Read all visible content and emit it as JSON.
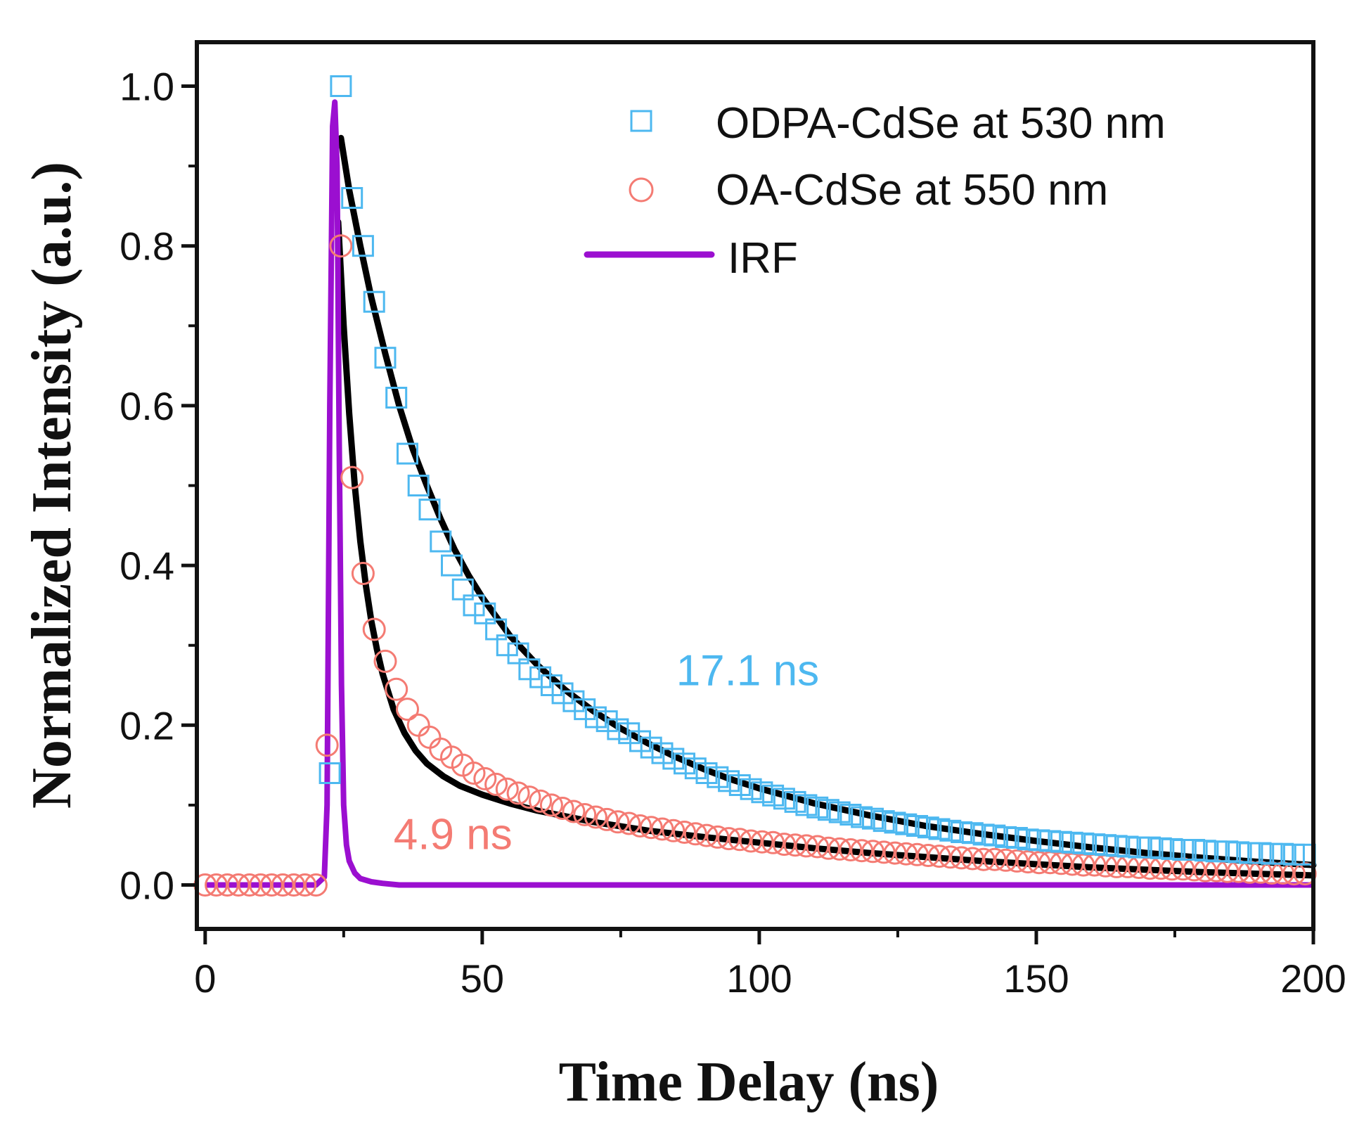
{
  "chart_data": {
    "type": "scatter",
    "title": "",
    "xlabel": "Time Delay (ns)",
    "ylabel": "Normalized Intensity (a.u.)",
    "xlim": [
      -1.5,
      200
    ],
    "ylim": [
      -0.055,
      1.055
    ],
    "xticks": [
      0,
      50,
      100,
      150,
      200
    ],
    "xtick_labels": [
      "0",
      "50",
      "100",
      "150",
      "200"
    ],
    "yticks": [
      0.0,
      0.2,
      0.4,
      0.6,
      0.8,
      1.0
    ],
    "ytick_labels": [
      "0.0",
      "0.2",
      "0.4",
      "0.6",
      "0.8",
      "1.0"
    ],
    "legend_position": "top-right",
    "colors": {
      "odpa": "#4db8f0",
      "oa": "#f47b73",
      "irf": "#9b0fd0",
      "fit": "#000000"
    },
    "series": [
      {
        "name": "ODPA-CdSe at 530 nm",
        "marker": "square",
        "x": [
          22.5,
          24.5,
          26.5,
          28.5,
          30.5,
          32.5,
          34.5,
          36.5,
          38.5,
          40.5,
          42.5,
          44.5,
          46.5,
          48.5,
          50.5,
          52.5,
          54.5,
          56.5,
          58.5,
          60.5,
          62.5,
          64.5,
          66.5,
          68.5,
          70.5,
          72.5,
          74.5,
          76.5,
          78.5,
          80.5,
          82.5,
          84.5,
          86.5,
          88.5,
          90.5,
          92.5,
          94.5,
          96.5,
          98.5,
          100.5,
          102.5,
          104.5,
          106.5,
          108.5,
          110.5,
          112.5,
          114.5,
          116.5,
          118.5,
          120.5,
          122.5,
          124.5,
          126.5,
          128.5,
          130.5,
          132.5,
          134.5,
          136.5,
          138.5,
          140.5,
          142.5,
          144.5,
          146.5,
          148.5,
          150.5,
          152.5,
          154.5,
          156.5,
          158.5,
          160.5,
          162.5,
          164.5,
          166.5,
          168.5,
          170.5,
          172.5,
          174.5,
          176.5,
          178.5,
          180.5,
          182.5,
          184.5,
          186.5,
          188.5,
          190.5,
          192.5,
          194.5,
          196.5,
          198.5
        ],
        "y": [
          0.14,
          1.0,
          0.86,
          0.8,
          0.73,
          0.66,
          0.61,
          0.54,
          0.5,
          0.47,
          0.43,
          0.4,
          0.37,
          0.35,
          0.34,
          0.32,
          0.3,
          0.29,
          0.27,
          0.26,
          0.25,
          0.24,
          0.23,
          0.22,
          0.21,
          0.205,
          0.195,
          0.19,
          0.18,
          0.172,
          0.165,
          0.158,
          0.152,
          0.146,
          0.14,
          0.135,
          0.13,
          0.125,
          0.12,
          0.116,
          0.112,
          0.108,
          0.104,
          0.1,
          0.097,
          0.094,
          0.091,
          0.088,
          0.085,
          0.083,
          0.08,
          0.078,
          0.076,
          0.074,
          0.072,
          0.07,
          0.068,
          0.066,
          0.065,
          0.063,
          0.062,
          0.06,
          0.059,
          0.057,
          0.056,
          0.055,
          0.054,
          0.053,
          0.052,
          0.051,
          0.05,
          0.049,
          0.048,
          0.047,
          0.047,
          0.046,
          0.045,
          0.044,
          0.044,
          0.043,
          0.042,
          0.042,
          0.041,
          0.04,
          0.04,
          0.039,
          0.039,
          0.038,
          0.038
        ]
      },
      {
        "name": "OA-CdSe at 550 nm",
        "marker": "circle",
        "x": [
          0,
          2,
          4,
          6,
          8,
          10,
          12,
          14,
          16,
          18,
          20,
          22,
          24.5,
          26.5,
          28.5,
          30.5,
          32.5,
          34.5,
          36.5,
          38.5,
          40.5,
          42.5,
          44.5,
          46.5,
          48.5,
          50.5,
          52.5,
          54.5,
          56.5,
          58.5,
          60.5,
          62.5,
          64.5,
          66.5,
          68.5,
          70.5,
          72.5,
          74.5,
          76.5,
          78.5,
          80.5,
          82.5,
          84.5,
          86.5,
          88.5,
          90.5,
          92.5,
          94.5,
          96.5,
          98.5,
          100.5,
          102.5,
          104.5,
          106.5,
          108.5,
          110.5,
          112.5,
          114.5,
          116.5,
          118.5,
          120.5,
          122.5,
          124.5,
          126.5,
          128.5,
          130.5,
          132.5,
          134.5,
          136.5,
          138.5,
          140.5,
          142.5,
          144.5,
          146.5,
          148.5,
          150.5,
          152.5,
          154.5,
          156.5,
          158.5,
          160.5,
          162.5,
          164.5,
          166.5,
          168.5,
          170.5,
          172.5,
          174.5,
          176.5,
          178.5,
          180.5,
          182.5,
          184.5,
          186.5,
          188.5,
          190.5,
          192.5,
          194.5,
          196.5,
          198.5
        ],
        "y": [
          0.0,
          0.0,
          0.0,
          0.0,
          0.0,
          0.0,
          0.0,
          0.0,
          0.0,
          0.0,
          0.0,
          0.175,
          0.8,
          0.51,
          0.39,
          0.32,
          0.28,
          0.245,
          0.22,
          0.2,
          0.185,
          0.17,
          0.16,
          0.15,
          0.14,
          0.133,
          0.126,
          0.12,
          0.115,
          0.11,
          0.105,
          0.1,
          0.096,
          0.092,
          0.088,
          0.085,
          0.082,
          0.079,
          0.077,
          0.074,
          0.072,
          0.07,
          0.068,
          0.066,
          0.064,
          0.062,
          0.06,
          0.058,
          0.057,
          0.055,
          0.054,
          0.053,
          0.051,
          0.05,
          0.049,
          0.048,
          0.046,
          0.045,
          0.044,
          0.043,
          0.042,
          0.041,
          0.04,
          0.039,
          0.038,
          0.037,
          0.036,
          0.035,
          0.034,
          0.033,
          0.032,
          0.032,
          0.031,
          0.03,
          0.029,
          0.028,
          0.028,
          0.027,
          0.026,
          0.025,
          0.025,
          0.024,
          0.023,
          0.023,
          0.022,
          0.021,
          0.021,
          0.02,
          0.02,
          0.019,
          0.018,
          0.018,
          0.017,
          0.017,
          0.016,
          0.016,
          0.015,
          0.015,
          0.014,
          0.014
        ]
      },
      {
        "name": "IRF",
        "marker": "line",
        "x": [
          0,
          20,
          21.5,
          22,
          22.5,
          23,
          23.4,
          23.8,
          24.2,
          24.6,
          25,
          25.5,
          26,
          27,
          28,
          30,
          32,
          35,
          40,
          60,
          100,
          150,
          200
        ],
        "y": [
          0.0,
          0.0,
          0.01,
          0.1,
          0.6,
          0.95,
          0.98,
          0.9,
          0.55,
          0.25,
          0.1,
          0.05,
          0.03,
          0.015,
          0.008,
          0.004,
          0.002,
          0.0,
          0.0,
          0.0,
          0.0,
          0.0,
          0.0
        ]
      }
    ],
    "fits": [
      {
        "name": "ODPA fit",
        "x": [
          24.5,
          26,
          28,
          30,
          32.5,
          35,
          37.5,
          40,
          42.5,
          45,
          47.5,
          50,
          55,
          60,
          65,
          70,
          75,
          80,
          85,
          90,
          95,
          100,
          110,
          120,
          130,
          140,
          150,
          160,
          170,
          180,
          190,
          200
        ],
        "y": [
          0.935,
          0.87,
          0.8,
          0.735,
          0.665,
          0.6,
          0.545,
          0.5,
          0.458,
          0.42,
          0.388,
          0.36,
          0.312,
          0.275,
          0.244,
          0.218,
          0.196,
          0.177,
          0.16,
          0.145,
          0.132,
          0.121,
          0.102,
          0.087,
          0.074,
          0.064,
          0.055,
          0.047,
          0.04,
          0.034,
          0.029,
          0.025
        ]
      },
      {
        "name": "OA fit",
        "x": [
          24,
          25,
          26,
          27,
          28,
          29,
          30,
          31,
          32,
          34,
          36,
          38,
          40,
          43,
          46,
          50,
          55,
          60,
          70,
          80,
          90,
          100,
          110,
          120,
          130,
          140,
          150,
          160,
          170,
          180,
          190,
          200
        ],
        "y": [
          0.83,
          0.7,
          0.59,
          0.5,
          0.43,
          0.375,
          0.33,
          0.295,
          0.265,
          0.22,
          0.19,
          0.168,
          0.152,
          0.136,
          0.124,
          0.113,
          0.102,
          0.093,
          0.079,
          0.068,
          0.06,
          0.053,
          0.046,
          0.04,
          0.035,
          0.03,
          0.026,
          0.022,
          0.019,
          0.016,
          0.014,
          0.012
        ]
      }
    ],
    "annotations": [
      {
        "text": "17.1 ns",
        "x": 85,
        "y": 0.25,
        "color": "#4db8f0"
      },
      {
        "text": "4.9 ns",
        "x": 34,
        "y": 0.045,
        "color": "#f47b73"
      }
    ]
  }
}
